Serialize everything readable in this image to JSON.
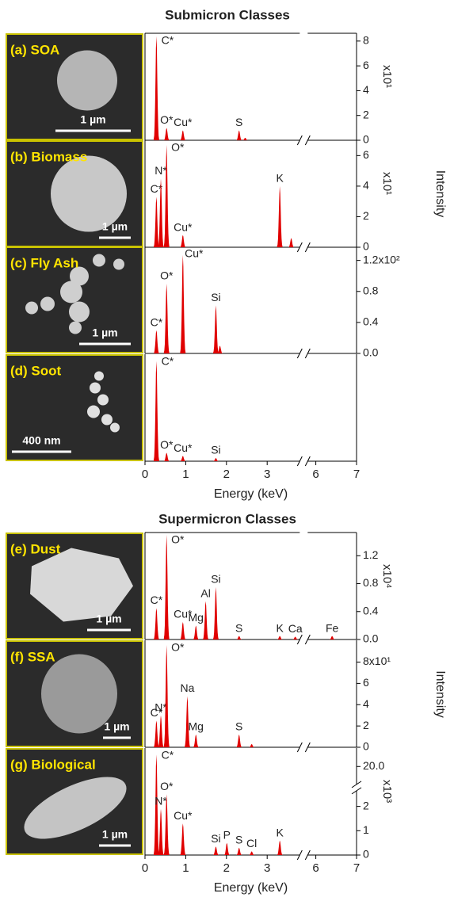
{
  "sections": [
    {
      "title": "Submicron Classes"
    },
    {
      "title": "Supermicron Classes"
    }
  ],
  "chart_data": [
    {
      "type": "spectrum",
      "label": "(a) SOA",
      "scale_bar": "1 µm",
      "color": "#e00000",
      "xlim": [
        0,
        7
      ],
      "xbreak": [
        3.8,
        5.8
      ],
      "ylim": [
        0,
        8.5
      ],
      "yticks": [
        0,
        2,
        4,
        6,
        8
      ],
      "multiplier": "x10¹",
      "ylabel": "Intensity",
      "x": [
        0.28,
        0.53,
        0.93,
        2.31,
        2.46
      ],
      "values": [
        8.4,
        1.0,
        0.8,
        0.8,
        0.2
      ],
      "peak_labels": [
        "C*",
        "O*",
        "Cu*",
        "S",
        null
      ]
    },
    {
      "type": "spectrum",
      "label": "(b) Biomass",
      "scale_bar": "1 µm",
      "color": "#e00000",
      "xlim": [
        0,
        7
      ],
      "xbreak": [
        3.8,
        5.8
      ],
      "ylim": [
        0,
        6.9
      ],
      "yticks": [
        0,
        2,
        4,
        6
      ],
      "multiplier": "x10¹",
      "x": [
        0.28,
        0.39,
        0.53,
        0.93,
        3.31,
        3.59
      ],
      "values": [
        3.3,
        4.5,
        6.7,
        0.8,
        4.0,
        0.6
      ],
      "peak_labels": [
        "C*",
        "N*",
        "O*",
        "Cu*",
        "K",
        null
      ]
    },
    {
      "type": "spectrum",
      "label": "(c) Fly Ash",
      "scale_bar": "1 µm",
      "color": "#e00000",
      "xlim": [
        0,
        7
      ],
      "xbreak": [
        3.8,
        5.8
      ],
      "ylim": [
        0,
        1.36
      ],
      "yticks": [
        {
          "value": 0,
          "label": "0.0"
        },
        {
          "value": 0.4,
          "label": "0.4"
        },
        {
          "value": 0.8,
          "label": "0.8"
        },
        {
          "value": 1.2,
          "label": "1.2x10²"
        }
      ],
      "x": [
        0.28,
        0.53,
        0.93,
        1.74,
        1.84
      ],
      "values": [
        0.3,
        0.9,
        1.27,
        0.62,
        0.1
      ],
      "peak_labels": [
        "C*",
        "O*",
        "Cu*",
        "Si",
        null
      ]
    },
    {
      "type": "spectrum",
      "label": "(d) Soot",
      "scale_bar": "400 nm",
      "color": "#e00000",
      "xlim": [
        0,
        7
      ],
      "xbreak": [
        3.8,
        5.8
      ],
      "ylim": [
        0,
        1
      ],
      "xticks": [
        0,
        1,
        2,
        3,
        6,
        7
      ],
      "xlabel": "Energy (keV)",
      "x": [
        0.28,
        0.53,
        0.93,
        1.74
      ],
      "values": [
        0.95,
        0.08,
        0.05,
        0.03
      ],
      "peak_labels": [
        "C*",
        "O*",
        "Cu*",
        "Si"
      ]
    },
    {
      "type": "spectrum",
      "label": "(e) Dust",
      "scale_bar": "1 µm",
      "color": "#e00000",
      "xlim": [
        0,
        7
      ],
      "xbreak": [
        3.8,
        5.8
      ],
      "ylim": [
        0,
        1.51
      ],
      "yticks": [
        {
          "value": 0,
          "label": "0.0"
        },
        {
          "value": 0.4,
          "label": "0.4"
        },
        {
          "value": 0.8,
          "label": "0.8"
        },
        {
          "value": 1.2,
          "label": "1.2"
        }
      ],
      "multiplier": "x10⁴",
      "ylabel": "Intensity",
      "x": [
        0.28,
        0.53,
        0.93,
        1.25,
        1.49,
        1.74,
        2.31,
        3.31,
        3.69,
        6.4
      ],
      "values": [
        0.45,
        1.5,
        0.25,
        0.2,
        0.55,
        0.75,
        0.05,
        0.05,
        0.04,
        0.05
      ],
      "peak_labels": [
        "C*",
        "O*",
        "Cu*",
        "Mg",
        "Al",
        "Si",
        "S",
        "K",
        "Ca",
        "Fe"
      ]
    },
    {
      "type": "spectrum",
      "label": "(f) SSA",
      "scale_bar": "1 µm",
      "color": "#e00000",
      "xlim": [
        0,
        7
      ],
      "xbreak": [
        3.8,
        5.8
      ],
      "ylim": [
        0,
        9.9
      ],
      "yticks": [
        0,
        2,
        4,
        6,
        {
          "value": 8,
          "label": "8x10¹"
        }
      ],
      "x": [
        0.28,
        0.39,
        0.53,
        1.04,
        1.25,
        2.31,
        2.62
      ],
      "values": [
        2.5,
        3.0,
        9.6,
        4.8,
        1.2,
        1.2,
        0.3
      ],
      "peak_labels": [
        "C*",
        "N*",
        "O*",
        "Na",
        "Mg",
        "S",
        null
      ]
    },
    {
      "type": "spectrum",
      "label": "(g) Biological",
      "scale_bar": "1 µm",
      "color": "#e00000",
      "xlim": [
        0,
        7
      ],
      "xbreak": [
        3.8,
        5.8
      ],
      "ylim": [
        0,
        20.7
      ],
      "ybreak": [
        2.6,
        19.3
      ],
      "yticks": [
        0,
        1,
        2,
        {
          "value": 20,
          "label": "20.0"
        }
      ],
      "multiplier": "x10³",
      "xticks": [
        0,
        1,
        2,
        3,
        6,
        7
      ],
      "xlabel": "Energy (keV)",
      "x": [
        0.28,
        0.39,
        0.53,
        0.93,
        1.74,
        2.01,
        2.31,
        2.62,
        3.31
      ],
      "values": [
        20.5,
        1.9,
        2.5,
        1.3,
        0.35,
        0.5,
        0.3,
        0.15,
        0.6
      ],
      "peak_labels": [
        "C*",
        "N*",
        "O*",
        "Cu*",
        "Si",
        "P",
        "S",
        "Cl",
        "K"
      ]
    }
  ]
}
